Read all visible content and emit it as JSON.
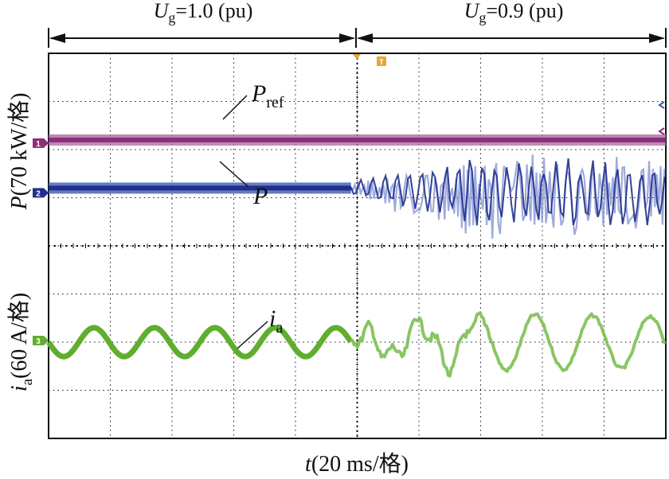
{
  "chart_data": {
    "type": "line",
    "title": "",
    "annotations": {
      "left_region": {
        "var": "U",
        "sub": "g",
        "eq": "=1.0 (pu)"
      },
      "right_region": {
        "var": "U",
        "sub": "g",
        "eq": "=0.9 (pu)"
      }
    },
    "xlabel": {
      "var": "t",
      "rest": "(20 ms/格)"
    },
    "ylabel_top": {
      "var": "P",
      "rest": "(70 kW/格)"
    },
    "ylabel_bottom": {
      "var": "i",
      "sub": "a",
      "rest": "(60 A/格)"
    },
    "x_divisions": 10,
    "y_divisions": 8,
    "switch_time_div": 4.9,
    "channel_markers": [
      "1",
      "2",
      "3"
    ],
    "trigger_marker": "T",
    "series": [
      {
        "name": "P_ref",
        "label_var": "P",
        "label_sub": "ref",
        "channel": "1",
        "color": "#8b2f7a",
        "level_div": 6.2,
        "description": "constant reference power"
      },
      {
        "name": "P",
        "label_var": "P",
        "label_sub": "",
        "channel": "2",
        "color": "#1f2f8c",
        "level_div": 5.2,
        "description": "steady before voltage drop, oscillates after"
      },
      {
        "name": "i_a",
        "label_var": "i",
        "label_sub": "a",
        "channel": "3",
        "color": "#5fae2e",
        "level_div": 2.0,
        "amp_div": 0.3,
        "cycles_before": 5,
        "description": "sinusoidal phase-a current"
      }
    ]
  }
}
